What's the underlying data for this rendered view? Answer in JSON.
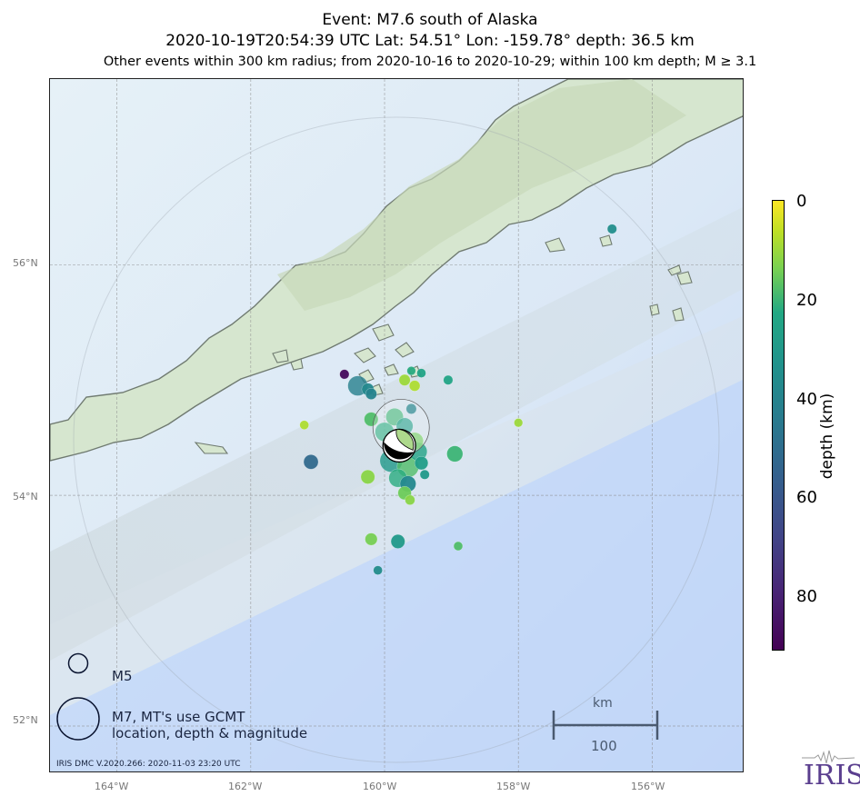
{
  "header": {
    "title": "Event: M7.6 south of Alaska",
    "subtitle": "2020-10-19T20:54:39 UTC Lat: 54.51° Lon: -159.78° depth: 36.5 km",
    "criteria": "Other events within 300 km radius; from 2020-10-16 to 2020-10-29; within 100 km depth; M ≥ 3.1"
  },
  "map": {
    "lat_labels": [
      "56°N",
      "54°N",
      "52°N"
    ],
    "lon_labels": [
      "164°W",
      "162°W",
      "160°W",
      "158°W",
      "156°W"
    ],
    "extent": {
      "lon_min": -165,
      "lon_max": -154.62,
      "lat_min": 51.59,
      "lat_max": 57.61
    },
    "mainshock": {
      "lat": 54.51,
      "lon": -159.78,
      "depth_km": 36.5,
      "mag": 7.6
    },
    "events": [
      {
        "lon": -160.6,
        "lat": 55.05,
        "depth": 88,
        "mag": 3.4
      },
      {
        "lon": -160.4,
        "lat": 54.95,
        "depth": 42,
        "mag": 5.1
      },
      {
        "lon": -160.25,
        "lat": 54.92,
        "depth": 38,
        "mag": 4.0
      },
      {
        "lon": -160.2,
        "lat": 54.88,
        "depth": 40,
        "mag": 3.8
      },
      {
        "lon": -159.7,
        "lat": 55.0,
        "depth": 10,
        "mag": 3.8
      },
      {
        "lon": -159.55,
        "lat": 54.95,
        "depth": 8,
        "mag": 3.7
      },
      {
        "lon": -159.45,
        "lat": 55.06,
        "depth": 25,
        "mag": 3.3
      },
      {
        "lon": -159.6,
        "lat": 55.08,
        "depth": 22,
        "mag": 3.2
      },
      {
        "lon": -159.05,
        "lat": 55.0,
        "depth": 25,
        "mag": 3.4
      },
      {
        "lon": -161.2,
        "lat": 54.61,
        "depth": 8,
        "mag": 3.3
      },
      {
        "lon": -161.1,
        "lat": 54.29,
        "depth": 52,
        "mag": 4.4
      },
      {
        "lon": -160.2,
        "lat": 54.66,
        "depth": 18,
        "mag": 4.3
      },
      {
        "lon": -160.0,
        "lat": 54.55,
        "depth": 22,
        "mag": 5.0
      },
      {
        "lon": -159.85,
        "lat": 54.68,
        "depth": 20,
        "mag": 4.8
      },
      {
        "lon": -159.7,
        "lat": 54.6,
        "depth": 28,
        "mag": 4.7
      },
      {
        "lon": -159.6,
        "lat": 54.75,
        "depth": 40,
        "mag": 3.6
      },
      {
        "lon": -159.55,
        "lat": 54.47,
        "depth": 15,
        "mag": 4.8
      },
      {
        "lon": -159.5,
        "lat": 54.38,
        "depth": 25,
        "mag": 4.9
      },
      {
        "lon": -159.45,
        "lat": 54.28,
        "depth": 28,
        "mag": 4.2
      },
      {
        "lon": -159.65,
        "lat": 54.25,
        "depth": 18,
        "mag": 5.3
      },
      {
        "lon": -159.8,
        "lat": 54.15,
        "depth": 22,
        "mag": 4.9
      },
      {
        "lon": -159.65,
        "lat": 54.1,
        "depth": 38,
        "mag": 4.6
      },
      {
        "lon": -159.7,
        "lat": 54.02,
        "depth": 15,
        "mag": 4.2
      },
      {
        "lon": -159.62,
        "lat": 53.96,
        "depth": 12,
        "mag": 3.5
      },
      {
        "lon": -159.9,
        "lat": 54.3,
        "depth": 30,
        "mag": 5.4
      },
      {
        "lon": -159.4,
        "lat": 54.18,
        "depth": 30,
        "mag": 3.4
      },
      {
        "lon": -160.25,
        "lat": 54.16,
        "depth": 12,
        "mag": 4.3
      },
      {
        "lon": -158.95,
        "lat": 54.36,
        "depth": 20,
        "mag": 4.6
      },
      {
        "lon": -158.0,
        "lat": 54.63,
        "depth": 10,
        "mag": 3.2
      },
      {
        "lon": -160.2,
        "lat": 53.62,
        "depth": 14,
        "mag": 4.0
      },
      {
        "lon": -159.8,
        "lat": 53.6,
        "depth": 30,
        "mag": 4.3
      },
      {
        "lon": -160.1,
        "lat": 53.35,
        "depth": 36,
        "mag": 3.3
      },
      {
        "lon": -158.9,
        "lat": 53.56,
        "depth": 18,
        "mag": 3.3
      },
      {
        "lon": -156.6,
        "lat": 56.31,
        "depth": 35,
        "mag": 3.4
      }
    ]
  },
  "legend": {
    "m5_label": "M5",
    "m7_label_line1": "M7, MT's use GCMT",
    "m7_label_line2": "location, depth & magnitude"
  },
  "scale_bar": {
    "unit": "km",
    "value": "100"
  },
  "colorbar": {
    "label": "depth (km)",
    "ticks": [
      "0",
      "20",
      "40",
      "60",
      "80"
    ],
    "range": [
      0,
      91
    ]
  },
  "credit": "IRIS DMC V.2020.266: 2020-11-03 23:20 UTC",
  "logo_text": "IRIS",
  "colors": {
    "ocean": "#c9dcf7",
    "land": "#cfe2c9",
    "coastline": "#6f7a70",
    "grid": "#8a8a8a",
    "logo": "#5a3e8e"
  }
}
